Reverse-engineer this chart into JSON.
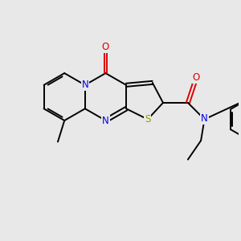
{
  "bg_color": "#e8e8e8",
  "bond_color": "#000000",
  "N_color": "#0000ee",
  "O_color": "#dd0000",
  "S_color": "#999900",
  "line_width": 1.4,
  "font_size": 8.5,
  "xlim": [
    -0.5,
    9.5
  ],
  "ylim": [
    -0.5,
    7.5
  ],
  "figsize": [
    3.0,
    3.0
  ],
  "dpi": 100
}
